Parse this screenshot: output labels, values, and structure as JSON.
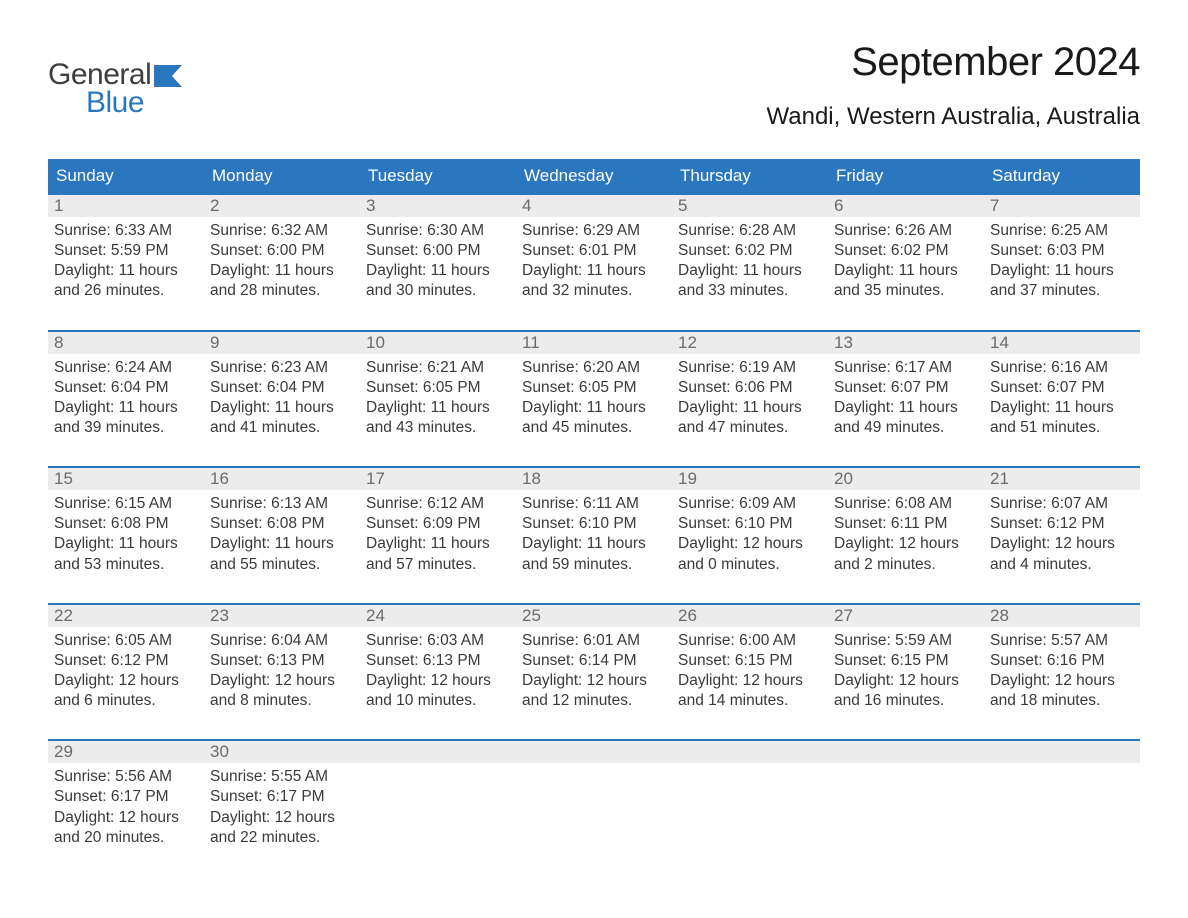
{
  "logo": {
    "text1": "General",
    "text2": "Blue",
    "color1": "#3e3e3e",
    "color2": "#2a77bf"
  },
  "title": "September 2024",
  "location": "Wandi, Western Australia, Australia",
  "colors": {
    "header_bg": "#2a77bf",
    "header_text": "#ffffff",
    "daynum_bg": "#ececec",
    "daynum_text": "#6b6b6b",
    "body_text": "#3a3a3a",
    "week_border": "#2a77bf",
    "page_bg": "#ffffff"
  },
  "typography": {
    "title_fontsize": 40,
    "location_fontsize": 24,
    "header_fontsize": 17,
    "daynum_fontsize": 17,
    "body_fontsize": 15.5
  },
  "layout": {
    "columns": 7,
    "rows": 5,
    "start_weekday": "Sunday"
  },
  "weekdays": [
    "Sunday",
    "Monday",
    "Tuesday",
    "Wednesday",
    "Thursday",
    "Friday",
    "Saturday"
  ],
  "weeks": [
    [
      {
        "n": "1",
        "sunrise": "6:33 AM",
        "sunset": "5:59 PM",
        "dl1": "Daylight: 11 hours",
        "dl2": "and 26 minutes."
      },
      {
        "n": "2",
        "sunrise": "6:32 AM",
        "sunset": "6:00 PM",
        "dl1": "Daylight: 11 hours",
        "dl2": "and 28 minutes."
      },
      {
        "n": "3",
        "sunrise": "6:30 AM",
        "sunset": "6:00 PM",
        "dl1": "Daylight: 11 hours",
        "dl2": "and 30 minutes."
      },
      {
        "n": "4",
        "sunrise": "6:29 AM",
        "sunset": "6:01 PM",
        "dl1": "Daylight: 11 hours",
        "dl2": "and 32 minutes."
      },
      {
        "n": "5",
        "sunrise": "6:28 AM",
        "sunset": "6:02 PM",
        "dl1": "Daylight: 11 hours",
        "dl2": "and 33 minutes."
      },
      {
        "n": "6",
        "sunrise": "6:26 AM",
        "sunset": "6:02 PM",
        "dl1": "Daylight: 11 hours",
        "dl2": "and 35 minutes."
      },
      {
        "n": "7",
        "sunrise": "6:25 AM",
        "sunset": "6:03 PM",
        "dl1": "Daylight: 11 hours",
        "dl2": "and 37 minutes."
      }
    ],
    [
      {
        "n": "8",
        "sunrise": "6:24 AM",
        "sunset": "6:04 PM",
        "dl1": "Daylight: 11 hours",
        "dl2": "and 39 minutes."
      },
      {
        "n": "9",
        "sunrise": "6:23 AM",
        "sunset": "6:04 PM",
        "dl1": "Daylight: 11 hours",
        "dl2": "and 41 minutes."
      },
      {
        "n": "10",
        "sunrise": "6:21 AM",
        "sunset": "6:05 PM",
        "dl1": "Daylight: 11 hours",
        "dl2": "and 43 minutes."
      },
      {
        "n": "11",
        "sunrise": "6:20 AM",
        "sunset": "6:05 PM",
        "dl1": "Daylight: 11 hours",
        "dl2": "and 45 minutes."
      },
      {
        "n": "12",
        "sunrise": "6:19 AM",
        "sunset": "6:06 PM",
        "dl1": "Daylight: 11 hours",
        "dl2": "and 47 minutes."
      },
      {
        "n": "13",
        "sunrise": "6:17 AM",
        "sunset": "6:07 PM",
        "dl1": "Daylight: 11 hours",
        "dl2": "and 49 minutes."
      },
      {
        "n": "14",
        "sunrise": "6:16 AM",
        "sunset": "6:07 PM",
        "dl1": "Daylight: 11 hours",
        "dl2": "and 51 minutes."
      }
    ],
    [
      {
        "n": "15",
        "sunrise": "6:15 AM",
        "sunset": "6:08 PM",
        "dl1": "Daylight: 11 hours",
        "dl2": "and 53 minutes."
      },
      {
        "n": "16",
        "sunrise": "6:13 AM",
        "sunset": "6:08 PM",
        "dl1": "Daylight: 11 hours",
        "dl2": "and 55 minutes."
      },
      {
        "n": "17",
        "sunrise": "6:12 AM",
        "sunset": "6:09 PM",
        "dl1": "Daylight: 11 hours",
        "dl2": "and 57 minutes."
      },
      {
        "n": "18",
        "sunrise": "6:11 AM",
        "sunset": "6:10 PM",
        "dl1": "Daylight: 11 hours",
        "dl2": "and 59 minutes."
      },
      {
        "n": "19",
        "sunrise": "6:09 AM",
        "sunset": "6:10 PM",
        "dl1": "Daylight: 12 hours",
        "dl2": "and 0 minutes."
      },
      {
        "n": "20",
        "sunrise": "6:08 AM",
        "sunset": "6:11 PM",
        "dl1": "Daylight: 12 hours",
        "dl2": "and 2 minutes."
      },
      {
        "n": "21",
        "sunrise": "6:07 AM",
        "sunset": "6:12 PM",
        "dl1": "Daylight: 12 hours",
        "dl2": "and 4 minutes."
      }
    ],
    [
      {
        "n": "22",
        "sunrise": "6:05 AM",
        "sunset": "6:12 PM",
        "dl1": "Daylight: 12 hours",
        "dl2": "and 6 minutes."
      },
      {
        "n": "23",
        "sunrise": "6:04 AM",
        "sunset": "6:13 PM",
        "dl1": "Daylight: 12 hours",
        "dl2": "and 8 minutes."
      },
      {
        "n": "24",
        "sunrise": "6:03 AM",
        "sunset": "6:13 PM",
        "dl1": "Daylight: 12 hours",
        "dl2": "and 10 minutes."
      },
      {
        "n": "25",
        "sunrise": "6:01 AM",
        "sunset": "6:14 PM",
        "dl1": "Daylight: 12 hours",
        "dl2": "and 12 minutes."
      },
      {
        "n": "26",
        "sunrise": "6:00 AM",
        "sunset": "6:15 PM",
        "dl1": "Daylight: 12 hours",
        "dl2": "and 14 minutes."
      },
      {
        "n": "27",
        "sunrise": "5:59 AM",
        "sunset": "6:15 PM",
        "dl1": "Daylight: 12 hours",
        "dl2": "and 16 minutes."
      },
      {
        "n": "28",
        "sunrise": "5:57 AM",
        "sunset": "6:16 PM",
        "dl1": "Daylight: 12 hours",
        "dl2": "and 18 minutes."
      }
    ],
    [
      {
        "n": "29",
        "sunrise": "5:56 AM",
        "sunset": "6:17 PM",
        "dl1": "Daylight: 12 hours",
        "dl2": "and 20 minutes."
      },
      {
        "n": "30",
        "sunrise": "5:55 AM",
        "sunset": "6:17 PM",
        "dl1": "Daylight: 12 hours",
        "dl2": "and 22 minutes."
      },
      {
        "n": "",
        "empty": true
      },
      {
        "n": "",
        "empty": true
      },
      {
        "n": "",
        "empty": true
      },
      {
        "n": "",
        "empty": true
      },
      {
        "n": "",
        "empty": true
      }
    ]
  ],
  "labels": {
    "sunrise_prefix": "Sunrise: ",
    "sunset_prefix": "Sunset: "
  }
}
